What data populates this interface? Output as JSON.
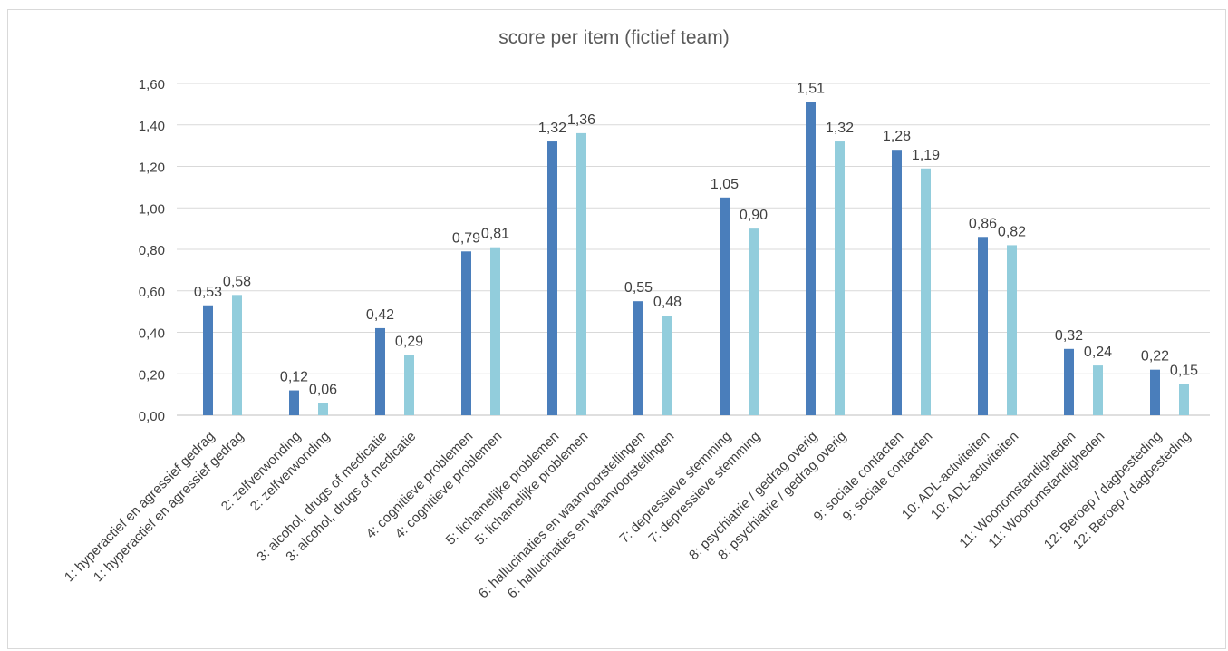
{
  "chart_data": {
    "type": "bar",
    "title": "score per item (fictief team)",
    "xlabel": "",
    "ylabel": "",
    "ylim": [
      0,
      1.6
    ],
    "yticks": [
      "0,00",
      "0,20",
      "0,40",
      "0,60",
      "0,80",
      "1,00",
      "1,20",
      "1,40",
      "1,60"
    ],
    "grid": true,
    "colors": [
      "#4a7ebb",
      "#92cddc"
    ],
    "groups": [
      {
        "labels": [
          "1: hyperactief en agressief gedrag",
          "1: hyperactief en agressief gedrag"
        ],
        "values": [
          0.53,
          0.58
        ],
        "value_labels": [
          "0,53",
          "0,58"
        ]
      },
      {
        "labels": [
          "2: zelfverwonding",
          "2: zelfverwonding"
        ],
        "values": [
          0.12,
          0.06
        ],
        "value_labels": [
          "0,12",
          "0,06"
        ]
      },
      {
        "labels": [
          "3: alcohol, drugs of medicatie",
          "3: alcohol, drugs of medicatie"
        ],
        "values": [
          0.42,
          0.29
        ],
        "value_labels": [
          "0,42",
          "0,29"
        ]
      },
      {
        "labels": [
          "4: cognitieve problemen",
          "4: cognitieve problemen"
        ],
        "values": [
          0.79,
          0.81
        ],
        "value_labels": [
          "0,79",
          "0,81"
        ]
      },
      {
        "labels": [
          "5: lichamelijke problemen",
          "5: lichamelijke problemen"
        ],
        "values": [
          1.32,
          1.36
        ],
        "value_labels": [
          "1,32",
          "1,36"
        ]
      },
      {
        "labels": [
          "6: hallucinaties en waanvoorstellingen",
          "6: hallucinaties en waanvoorstellingen"
        ],
        "values": [
          0.55,
          0.48
        ],
        "value_labels": [
          "0,55",
          "0,48"
        ]
      },
      {
        "labels": [
          "7: depressieve stemming",
          "7: depressieve stemming"
        ],
        "values": [
          1.05,
          0.9
        ],
        "value_labels": [
          "1,05",
          "0,90"
        ]
      },
      {
        "labels": [
          "8: psychiatrie / gedrag overig",
          "8: psychiatrie / gedrag overig"
        ],
        "values": [
          1.51,
          1.32
        ],
        "value_labels": [
          "1,51",
          "1,32"
        ]
      },
      {
        "labels": [
          "9: sociale contacten",
          "9: sociale contacten"
        ],
        "values": [
          1.28,
          1.19
        ],
        "value_labels": [
          "1,28",
          "1,19"
        ]
      },
      {
        "labels": [
          "10: ADL-activiteiten",
          "10: ADL-activiteiten"
        ],
        "values": [
          0.86,
          0.82
        ],
        "value_labels": [
          "0,86",
          "0,82"
        ]
      },
      {
        "labels": [
          "11: Woonomstandigheden",
          "11: Woonomstandigheden"
        ],
        "values": [
          0.32,
          0.24
        ],
        "value_labels": [
          "0,32",
          "0,24"
        ]
      },
      {
        "labels": [
          "12: Beroep / dagbesteding",
          "12: Beroep / dagbesteding"
        ],
        "values": [
          0.22,
          0.15
        ],
        "value_labels": [
          "0,22",
          "0,15"
        ]
      }
    ]
  }
}
